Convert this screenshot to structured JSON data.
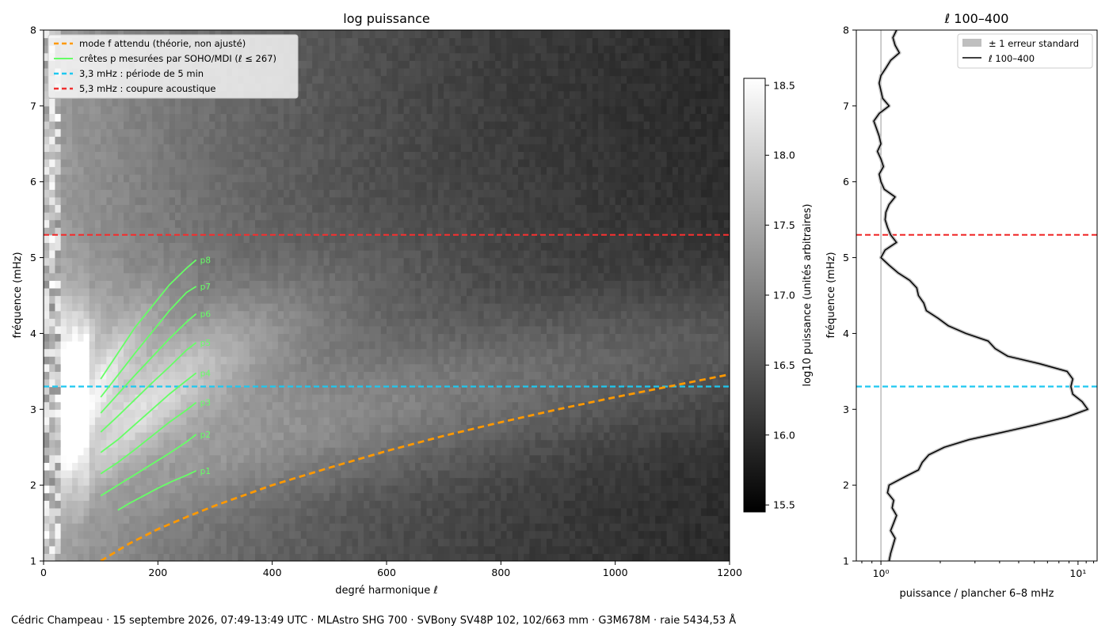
{
  "credit": "Cédric Champeau · 15 septembre 2026, 07:49-13:49 UTC · MLAstro SHG 700 · SVBony SV48P 102, 102/663 mm · G3M678M · raie 5434,53 Å",
  "colors": {
    "f_mode": "#ff9900",
    "p_ridges": "#66ff66",
    "five_min": "#1ec8f0",
    "cutoff": "#f03030",
    "profile": "#000000",
    "error_band": "#bfbfbf"
  },
  "chart_data": [
    {
      "type": "heatmap",
      "title": "log puissance",
      "xlabel": "degré harmonique ℓ",
      "ylabel": "fréquence (mHz)",
      "xlim": [
        0,
        1200
      ],
      "ylim": [
        1,
        8
      ],
      "xticks": [
        0,
        200,
        400,
        600,
        800,
        1000,
        1200
      ],
      "yticks": [
        1,
        2,
        3,
        4,
        5,
        6,
        7,
        8
      ],
      "colormap": "gray",
      "colorbar": {
        "label": "log10 puissance (unités arbitraires)",
        "range": [
          15.45,
          18.55
        ],
        "ticks": [
          15.5,
          16.0,
          16.5,
          17.0,
          17.5,
          18.0,
          18.5
        ]
      },
      "legend": {
        "position": "top-left",
        "entries": [
          "mode f attendu (théorie, non ajusté)",
          "crêtes p mesurées par SOHO/MDI (ℓ ≤ 267)",
          "3,3 mHz : période de 5 min",
          "5,3 mHz : coupure acoustique"
        ]
      },
      "hlines": [
        {
          "y": 3.3,
          "style": "dashed",
          "color_key": "five_min"
        },
        {
          "y": 5.3,
          "style": "dashed",
          "color_key": "cutoff"
        }
      ],
      "f_mode": {
        "x": [
          100,
          150,
          200,
          250,
          300,
          400,
          500,
          600,
          700,
          800,
          900,
          1000,
          1100,
          1200
        ],
        "y": [
          1.0,
          1.23,
          1.42,
          1.58,
          1.73,
          2.0,
          2.23,
          2.45,
          2.65,
          2.83,
          3.0,
          3.16,
          3.31,
          3.46
        ]
      },
      "p_ridges": [
        {
          "label": "p1",
          "x": [
            130,
            150,
            175,
            200,
            225,
            250,
            267
          ],
          "y": [
            1.67,
            1.76,
            1.86,
            1.96,
            2.05,
            2.13,
            2.19
          ]
        },
        {
          "label": "p2",
          "x": [
            100,
            130,
            160,
            190,
            220,
            250,
            267
          ],
          "y": [
            1.86,
            2.0,
            2.14,
            2.28,
            2.42,
            2.57,
            2.67
          ]
        },
        {
          "label": "p3",
          "x": [
            100,
            130,
            160,
            190,
            220,
            250,
            267
          ],
          "y": [
            2.15,
            2.3,
            2.47,
            2.65,
            2.83,
            2.99,
            3.09
          ]
        },
        {
          "label": "p4",
          "x": [
            100,
            130,
            160,
            190,
            220,
            250,
            267
          ],
          "y": [
            2.43,
            2.6,
            2.8,
            3.0,
            3.2,
            3.38,
            3.48
          ]
        },
        {
          "label": "p5",
          "x": [
            100,
            130,
            160,
            190,
            220,
            250,
            267
          ],
          "y": [
            2.7,
            2.91,
            3.13,
            3.35,
            3.56,
            3.78,
            3.88
          ]
        },
        {
          "label": "p6",
          "x": [
            100,
            130,
            160,
            190,
            220,
            250,
            267
          ],
          "y": [
            2.95,
            3.2,
            3.45,
            3.69,
            3.93,
            4.15,
            4.26
          ]
        },
        {
          "label": "p7",
          "x": [
            100,
            130,
            160,
            190,
            220,
            250,
            267
          ],
          "y": [
            3.16,
            3.45,
            3.74,
            4.02,
            4.3,
            4.54,
            4.62
          ]
        },
        {
          "label": "p8",
          "x": [
            100,
            130,
            160,
            190,
            220,
            250,
            267
          ],
          "y": [
            3.4,
            3.74,
            4.08,
            4.36,
            4.64,
            4.86,
            4.97
          ]
        }
      ]
    },
    {
      "type": "line",
      "title": "ℓ 100–400",
      "xlabel": "puissance / plancher 6–8 mHz",
      "ylabel": "fréquence (mHz)",
      "xscale": "log",
      "xlim": [
        0.75,
        12.5
      ],
      "ylim": [
        1,
        8
      ],
      "xticks": [
        1,
        10
      ],
      "xtick_labels": [
        "10⁰",
        "10¹"
      ],
      "yticks": [
        1,
        2,
        3,
        4,
        5,
        6,
        7,
        8
      ],
      "vline": {
        "x": 1.0
      },
      "hlines": [
        {
          "y": 3.3,
          "style": "dashed",
          "color_key": "five_min"
        },
        {
          "y": 5.3,
          "style": "dashed",
          "color_key": "cutoff"
        }
      ],
      "legend": {
        "position": "top-right",
        "entries": [
          "± 1 erreur standard",
          "ℓ 100–400"
        ]
      },
      "series": [
        {
          "name": "ℓ 100–400",
          "y": [
            1.0,
            1.1,
            1.2,
            1.3,
            1.4,
            1.5,
            1.6,
            1.7,
            1.8,
            1.9,
            2.0,
            2.1,
            2.2,
            2.3,
            2.4,
            2.5,
            2.6,
            2.7,
            2.8,
            2.9,
            3.0,
            3.1,
            3.2,
            3.3,
            3.4,
            3.5,
            3.6,
            3.7,
            3.8,
            3.9,
            4.0,
            4.1,
            4.2,
            4.3,
            4.4,
            4.5,
            4.6,
            4.7,
            4.8,
            4.9,
            5.0,
            5.1,
            5.2,
            5.3,
            5.4,
            5.5,
            5.6,
            5.7,
            5.8,
            5.9,
            6.0,
            6.1,
            6.2,
            6.3,
            6.4,
            6.5,
            6.6,
            6.7,
            6.8,
            6.9,
            7.0,
            7.1,
            7.2,
            7.3,
            7.4,
            7.5,
            7.6,
            7.7,
            7.8,
            7.9,
            8.0
          ],
          "x": [
            1.1,
            1.12,
            1.15,
            1.18,
            1.12,
            1.16,
            1.2,
            1.14,
            1.16,
            1.08,
            1.1,
            1.3,
            1.55,
            1.62,
            1.75,
            2.1,
            2.8,
            4.2,
            6.2,
            8.8,
            11.2,
            10.5,
            9.4,
            9.2,
            9.4,
            8.8,
            6.4,
            4.4,
            3.8,
            3.5,
            2.7,
            2.2,
            1.95,
            1.7,
            1.65,
            1.55,
            1.52,
            1.4,
            1.22,
            1.1,
            1.0,
            1.05,
            1.2,
            1.12,
            1.08,
            1.05,
            1.06,
            1.1,
            1.18,
            1.04,
            1.0,
            0.98,
            1.03,
            1.0,
            0.96,
            1.0,
            0.98,
            0.95,
            0.92,
            0.98,
            1.1,
            1.02,
            1.0,
            0.98,
            1.0,
            1.06,
            1.12,
            1.24,
            1.18,
            1.15,
            1.2
          ]
        }
      ]
    }
  ]
}
